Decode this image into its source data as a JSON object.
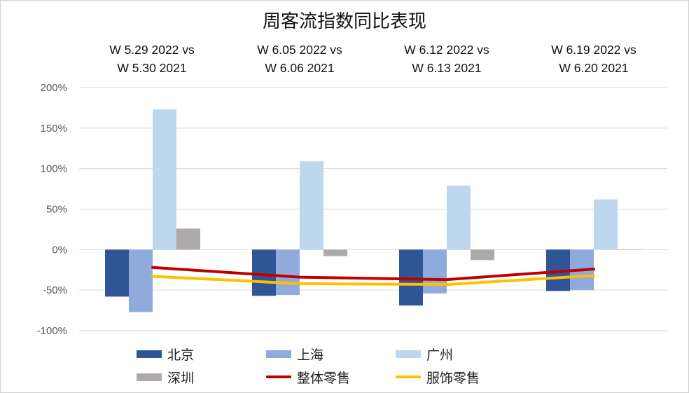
{
  "title": "周客流指数同比表现",
  "periods": [
    {
      "line1": "W 5.29 2022  vs",
      "line2": "W 5.30 2021"
    },
    {
      "line1": "W 6.05 2022  vs",
      "line2": "W 6.06 2021"
    },
    {
      "line1": "W 6.12 2022  vs",
      "line2": "W 6.13 2021"
    },
    {
      "line1": "W 6.19 2022  vs",
      "line2": "W 6.20 2021"
    }
  ],
  "legend": {
    "beijing": "北京",
    "shanghai": "上海",
    "guangzhou": "广州",
    "shenzhen": "深圳",
    "overall": "整体零售",
    "apparel": "服饰零售"
  },
  "chart_data": {
    "type": "bar",
    "title": "周客流指数同比表现",
    "categories": [
      "W 5.29 2022 vs W 5.30 2021",
      "W 6.05 2022 vs W 6.06 2021",
      "W 6.12 2022 vs W 6.13 2021",
      "W 6.19 2022 vs W 6.20 2021"
    ],
    "ylim": [
      -100,
      200
    ],
    "yticks": [
      "200%",
      "150%",
      "100%",
      "50%",
      "0%",
      "-50%",
      "-100%"
    ],
    "ytick_values": [
      200,
      150,
      100,
      50,
      0,
      -50,
      -100
    ],
    "unit": "%",
    "grid": true,
    "legend_position": "bottom",
    "series": [
      {
        "name": "北京",
        "kind": "bar",
        "color": "#2F5597",
        "values": [
          -58,
          -57,
          -69,
          -51
        ]
      },
      {
        "name": "上海",
        "kind": "bar",
        "color": "#8FAADC",
        "values": [
          -77,
          -56,
          -54,
          -50
        ]
      },
      {
        "name": "广州",
        "kind": "bar",
        "color": "#BDD7EE",
        "values": [
          173,
          109,
          79,
          62
        ]
      },
      {
        "name": "深圳",
        "kind": "bar",
        "color": "#AEAAAA",
        "values": [
          26,
          -8,
          -13,
          0
        ]
      },
      {
        "name": "整体零售",
        "kind": "line",
        "color": "#C00000",
        "values": [
          -22,
          -34,
          -37,
          -24
        ]
      },
      {
        "name": "服饰零售",
        "kind": "line",
        "color": "#FFC000",
        "values": [
          -33,
          -42,
          -43,
          -32
        ]
      }
    ]
  }
}
